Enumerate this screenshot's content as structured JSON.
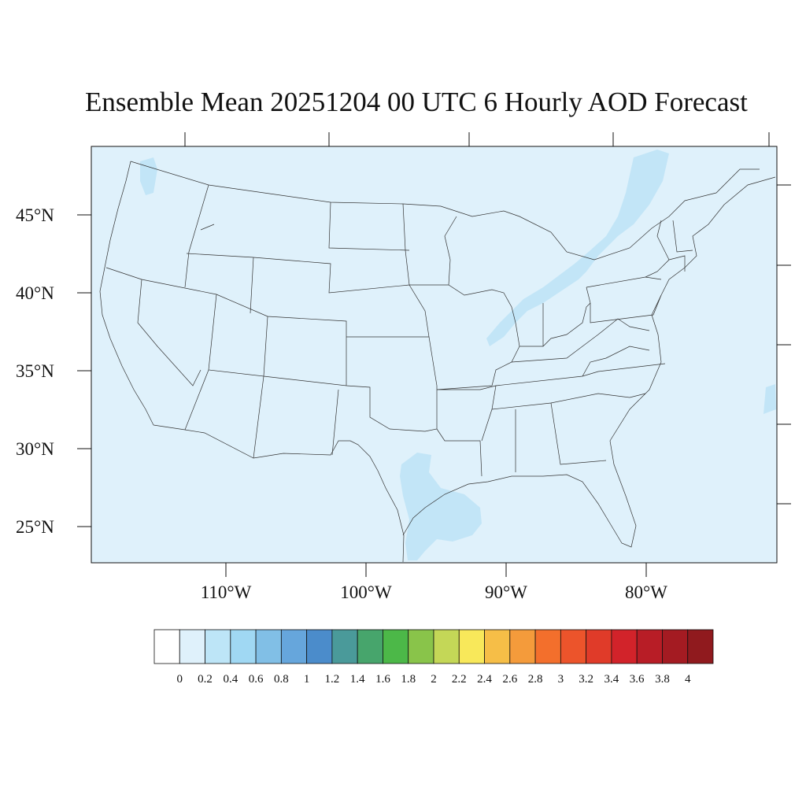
{
  "title": "Ensemble Mean 20251204 00 UTC 6 Hourly AOD Forecast",
  "map": {
    "lat_labels": [
      "45°N",
      "40°N",
      "35°N",
      "30°N",
      "25°N"
    ],
    "lon_labels": [
      "110°W",
      "100°W",
      "90°W",
      "80°W"
    ],
    "background_color": "#dff1fb",
    "plume_color": "#c2e5f7"
  },
  "colorbar": {
    "labels": [
      "0",
      "0.2",
      "0.4",
      "0.6",
      "0.8",
      "1",
      "1.2",
      "1.4",
      "1.6",
      "1.8",
      "2",
      "2.2",
      "2.4",
      "2.6",
      "2.8",
      "3",
      "3.2",
      "3.4",
      "3.6",
      "3.8",
      "4"
    ],
    "colors": [
      "#ffffff",
      "#dff1fb",
      "#bde5f7",
      "#a0d8f3",
      "#81bfe6",
      "#66a6dc",
      "#4b8ccb",
      "#4a9a9a",
      "#47a56c",
      "#4cb848",
      "#89c44a",
      "#c4d757",
      "#f8e85a",
      "#f6be47",
      "#f49b3b",
      "#f36f2c",
      "#ec542b",
      "#e03b29",
      "#d2232a",
      "#b81d26",
      "#a41b22",
      "#901a1e"
    ]
  }
}
